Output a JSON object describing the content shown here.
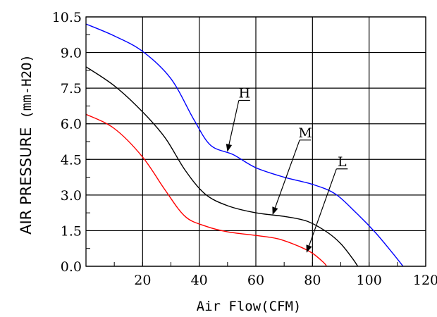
{
  "chart_data": {
    "type": "line",
    "xlabel": "Air Flow(CFM)",
    "ylabel": "AIR PRESSURE",
    "ylabel_unit": "(mm-H2O)",
    "xlim": [
      0,
      120
    ],
    "ylim": [
      0,
      10.5
    ],
    "x_ticks": [
      20,
      40,
      60,
      80,
      100,
      120
    ],
    "x_tick_labels": [
      "20",
      "40",
      "60",
      "80",
      "100",
      "120"
    ],
    "y_ticks": [
      0,
      1.5,
      3.0,
      4.5,
      6.0,
      7.5,
      9.0,
      10.5
    ],
    "y_tick_labels": [
      "0.0",
      "1.5",
      "3.0",
      "4.5",
      "6.0",
      "7.5",
      "9.0",
      "10.5"
    ],
    "grid": true,
    "series": [
      {
        "name": "H",
        "color": "#0000ff",
        "points": [
          [
            0,
            10.2
          ],
          [
            10,
            9.7
          ],
          [
            20,
            9.05
          ],
          [
            30,
            7.9
          ],
          [
            38,
            6.2
          ],
          [
            44,
            5.1
          ],
          [
            52,
            4.7
          ],
          [
            60,
            4.15
          ],
          [
            70,
            3.75
          ],
          [
            80,
            3.45
          ],
          [
            88,
            3.05
          ],
          [
            95,
            2.3
          ],
          [
            102,
            1.45
          ],
          [
            108,
            0.6
          ],
          [
            112,
            0
          ]
        ]
      },
      {
        "name": "M",
        "color": "#000000",
        "points": [
          [
            0,
            8.4
          ],
          [
            10,
            7.6
          ],
          [
            20,
            6.5
          ],
          [
            28,
            5.4
          ],
          [
            35,
            4.05
          ],
          [
            42,
            3.05
          ],
          [
            50,
            2.55
          ],
          [
            60,
            2.25
          ],
          [
            70,
            2.1
          ],
          [
            78,
            1.9
          ],
          [
            85,
            1.45
          ],
          [
            90,
            0.95
          ],
          [
            94,
            0.35
          ],
          [
            96,
            0
          ]
        ]
      },
      {
        "name": "L",
        "color": "#ff0000",
        "points": [
          [
            0,
            6.4
          ],
          [
            10,
            5.8
          ],
          [
            20,
            4.6
          ],
          [
            28,
            3.2
          ],
          [
            35,
            2.1
          ],
          [
            42,
            1.7
          ],
          [
            50,
            1.45
          ],
          [
            60,
            1.3
          ],
          [
            68,
            1.15
          ],
          [
            75,
            0.85
          ],
          [
            80,
            0.55
          ],
          [
            84,
            0.15
          ],
          [
            85,
            0
          ]
        ]
      }
    ],
    "annotations": [
      {
        "text": "H",
        "series": "H",
        "point_x": 50,
        "point_y": 4.85
      },
      {
        "text": "M",
        "series": "M",
        "point_x": 66,
        "point_y": 2.2
      },
      {
        "text": "L",
        "series": "L",
        "point_x": 78,
        "point_y": 0.6
      }
    ]
  }
}
